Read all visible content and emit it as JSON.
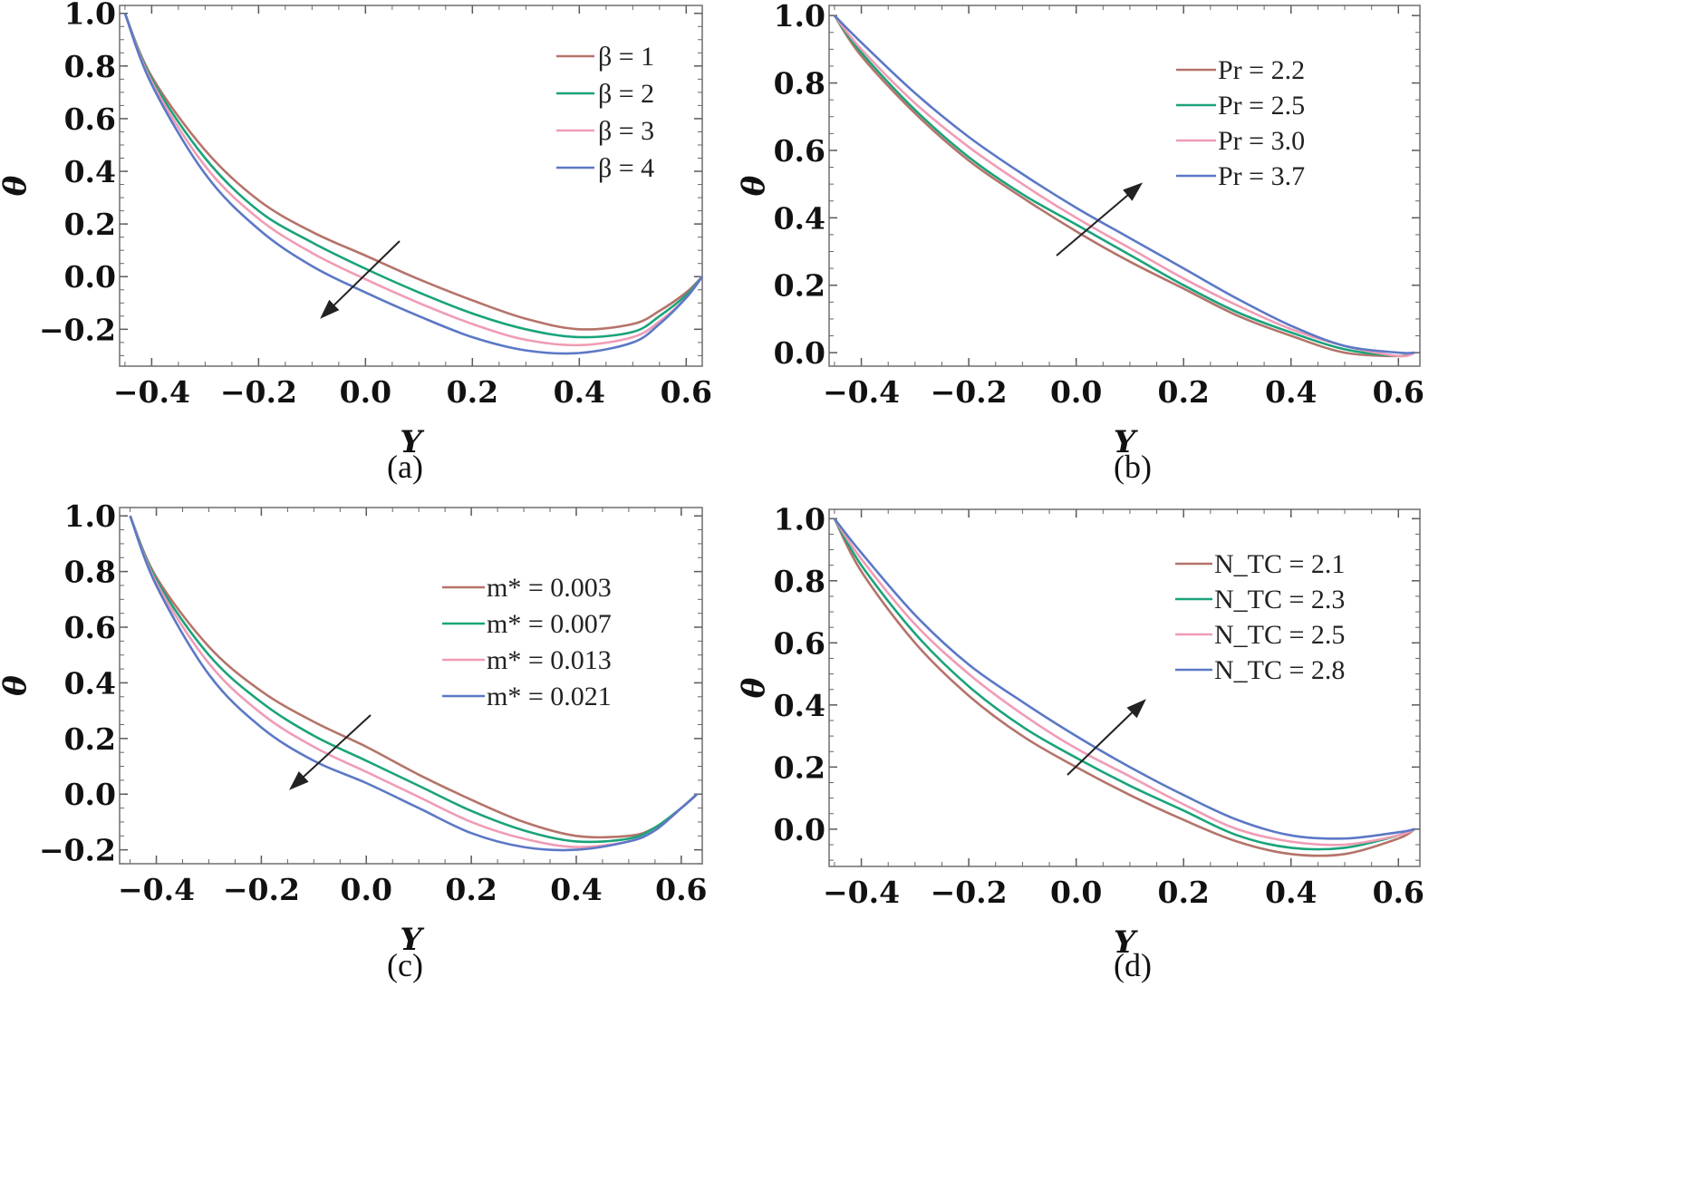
{
  "figure": {
    "colors": [
      "#b5736a",
      "#1aa37a",
      "#f09cb4",
      "#5b78c6"
    ],
    "arrow_color": "#222222"
  },
  "chart_data": [
    {
      "type": "line",
      "caption": "(a)",
      "xlabel": "Y",
      "ylabel": "θ",
      "xlim": [
        -0.46,
        0.63
      ],
      "ylim": [
        -0.34,
        1.03
      ],
      "xticks": [
        -0.4,
        -0.2,
        0.0,
        0.2,
        0.4,
        0.6
      ],
      "xtick_labels": [
        "−0.4",
        "−0.2",
        "0.0",
        "0.2",
        "0.4",
        "0.6"
      ],
      "yticks": [
        -0.2,
        0.0,
        0.2,
        0.4,
        0.6,
        0.8,
        1.0
      ],
      "ytick_labels": [
        "−0.2",
        "0.0",
        "0.2",
        "0.4",
        "0.6",
        "0.8",
        "1.0"
      ],
      "legend_position": "top-right",
      "arrow_direction": "down-left",
      "x": [
        -0.45,
        -0.4,
        -0.3,
        -0.2,
        -0.1,
        0.0,
        0.1,
        0.2,
        0.3,
        0.4,
        0.5,
        0.55,
        0.6,
        0.63
      ],
      "series": [
        {
          "name": "β = 1",
          "values": [
            1.0,
            0.76,
            0.48,
            0.29,
            0.17,
            0.08,
            -0.01,
            -0.09,
            -0.16,
            -0.2,
            -0.18,
            -0.13,
            -0.06,
            0.0
          ]
        },
        {
          "name": "β = 2",
          "values": [
            1.0,
            0.75,
            0.45,
            0.25,
            0.13,
            0.03,
            -0.06,
            -0.14,
            -0.2,
            -0.23,
            -0.21,
            -0.15,
            -0.07,
            0.0
          ]
        },
        {
          "name": "β = 3",
          "values": [
            1.0,
            0.74,
            0.42,
            0.22,
            0.09,
            -0.01,
            -0.1,
            -0.18,
            -0.24,
            -0.26,
            -0.23,
            -0.17,
            -0.08,
            0.0
          ]
        },
        {
          "name": "β = 4",
          "values": [
            1.0,
            0.73,
            0.39,
            0.18,
            0.04,
            -0.06,
            -0.15,
            -0.23,
            -0.28,
            -0.29,
            -0.25,
            -0.18,
            -0.08,
            0.0
          ]
        }
      ]
    },
    {
      "type": "line",
      "caption": "(b)",
      "xlabel": "Y",
      "ylabel": "θ",
      "xlim": [
        -0.46,
        0.64
      ],
      "ylim": [
        -0.04,
        1.03
      ],
      "xticks": [
        -0.4,
        -0.2,
        0.0,
        0.2,
        0.4,
        0.6
      ],
      "xtick_labels": [
        "−0.4",
        "−0.2",
        "0.0",
        "0.2",
        "0.4",
        "0.6"
      ],
      "yticks": [
        0.0,
        0.2,
        0.4,
        0.6,
        0.8,
        1.0
      ],
      "ytick_labels": [
        "0.0",
        "0.2",
        "0.4",
        "0.6",
        "0.8",
        "1.0"
      ],
      "legend_position": "top-right",
      "arrow_direction": "up-right",
      "x": [
        -0.45,
        -0.4,
        -0.3,
        -0.2,
        -0.1,
        0.0,
        0.1,
        0.2,
        0.3,
        0.4,
        0.5,
        0.6,
        0.63
      ],
      "series": [
        {
          "name": "Pr = 2.2",
          "values": [
            1.0,
            0.88,
            0.71,
            0.57,
            0.46,
            0.36,
            0.27,
            0.19,
            0.11,
            0.05,
            0.0,
            -0.01,
            0.0
          ]
        },
        {
          "name": "Pr = 2.5",
          "values": [
            1.0,
            0.89,
            0.72,
            0.58,
            0.47,
            0.38,
            0.29,
            0.2,
            0.12,
            0.06,
            0.01,
            -0.01,
            0.0
          ]
        },
        {
          "name": "Pr = 3.0",
          "values": [
            1.0,
            0.9,
            0.74,
            0.61,
            0.5,
            0.4,
            0.31,
            0.22,
            0.14,
            0.07,
            0.02,
            -0.01,
            0.0
          ]
        },
        {
          "name": "Pr = 3.7",
          "values": [
            1.0,
            0.92,
            0.77,
            0.64,
            0.53,
            0.43,
            0.34,
            0.25,
            0.16,
            0.08,
            0.02,
            0.0,
            0.0
          ]
        }
      ]
    },
    {
      "type": "line",
      "caption": "(c)",
      "xlabel": "Y",
      "ylabel": "θ",
      "xlim": [
        -0.47,
        0.64
      ],
      "ylim": [
        -0.25,
        1.03
      ],
      "xticks": [
        -0.4,
        -0.2,
        0.0,
        0.2,
        0.4,
        0.6
      ],
      "xtick_labels": [
        "−0.4",
        "−0.2",
        "0.0",
        "0.2",
        "0.4",
        "0.6"
      ],
      "yticks": [
        -0.2,
        0.0,
        0.2,
        0.4,
        0.6,
        0.8,
        1.0
      ],
      "ytick_labels": [
        "−0.2",
        "0.0",
        "0.2",
        "0.4",
        "0.6",
        "0.8",
        "1.0"
      ],
      "legend_position": "middle-right",
      "arrow_direction": "down-left",
      "x": [
        -0.45,
        -0.4,
        -0.3,
        -0.2,
        -0.1,
        0.0,
        0.1,
        0.2,
        0.3,
        0.4,
        0.5,
        0.55,
        0.6,
        0.63
      ],
      "series": [
        {
          "name": "m* = 0.003",
          "values": [
            1.0,
            0.78,
            0.53,
            0.37,
            0.26,
            0.17,
            0.07,
            -0.02,
            -0.1,
            -0.15,
            -0.15,
            -0.12,
            -0.05,
            0.0
          ]
        },
        {
          "name": "m* = 0.007",
          "values": [
            1.0,
            0.77,
            0.5,
            0.33,
            0.21,
            0.12,
            0.03,
            -0.06,
            -0.13,
            -0.17,
            -0.16,
            -0.12,
            -0.05,
            0.0
          ]
        },
        {
          "name": "m* = 0.013",
          "values": [
            1.0,
            0.76,
            0.47,
            0.29,
            0.17,
            0.08,
            -0.01,
            -0.1,
            -0.16,
            -0.19,
            -0.17,
            -0.13,
            -0.05,
            0.0
          ]
        },
        {
          "name": "m* = 0.021",
          "values": [
            1.0,
            0.75,
            0.43,
            0.24,
            0.12,
            0.04,
            -0.05,
            -0.14,
            -0.19,
            -0.2,
            -0.17,
            -0.13,
            -0.05,
            0.0
          ]
        }
      ]
    },
    {
      "type": "line",
      "caption": "(d)",
      "xlabel": "Y",
      "ylabel": "θ",
      "xlim": [
        -0.46,
        0.64
      ],
      "ylim": [
        -0.12,
        1.03
      ],
      "xticks": [
        -0.4,
        -0.2,
        0.0,
        0.2,
        0.4,
        0.6
      ],
      "xtick_labels": [
        "−0.4",
        "−0.2",
        "0.0",
        "0.2",
        "0.4",
        "0.6"
      ],
      "yticks": [
        0.0,
        0.2,
        0.4,
        0.6,
        0.8,
        1.0
      ],
      "ytick_labels": [
        "0.0",
        "0.2",
        "0.4",
        "0.6",
        "0.8",
        "1.0"
      ],
      "legend_position": "top-right",
      "arrow_direction": "up-right",
      "x": [
        -0.45,
        -0.4,
        -0.3,
        -0.2,
        -0.1,
        0.0,
        0.1,
        0.2,
        0.3,
        0.4,
        0.5,
        0.6,
        0.63
      ],
      "series": [
        {
          "name": "N_TC = 2.1",
          "values": [
            1.0,
            0.83,
            0.6,
            0.43,
            0.3,
            0.2,
            0.11,
            0.03,
            -0.04,
            -0.08,
            -0.08,
            -0.03,
            0.0
          ]
        },
        {
          "name": "N_TC = 2.3",
          "values": [
            1.0,
            0.85,
            0.63,
            0.46,
            0.33,
            0.23,
            0.14,
            0.06,
            -0.02,
            -0.06,
            -0.06,
            -0.02,
            0.0
          ]
        },
        {
          "name": "N_TC = 2.5",
          "values": [
            1.0,
            0.87,
            0.66,
            0.5,
            0.37,
            0.26,
            0.17,
            0.08,
            0.0,
            -0.04,
            -0.05,
            -0.02,
            0.0
          ]
        },
        {
          "name": "N_TC = 2.8",
          "values": [
            1.0,
            0.89,
            0.69,
            0.53,
            0.41,
            0.3,
            0.2,
            0.11,
            0.03,
            -0.02,
            -0.03,
            -0.01,
            0.0
          ]
        }
      ]
    }
  ]
}
